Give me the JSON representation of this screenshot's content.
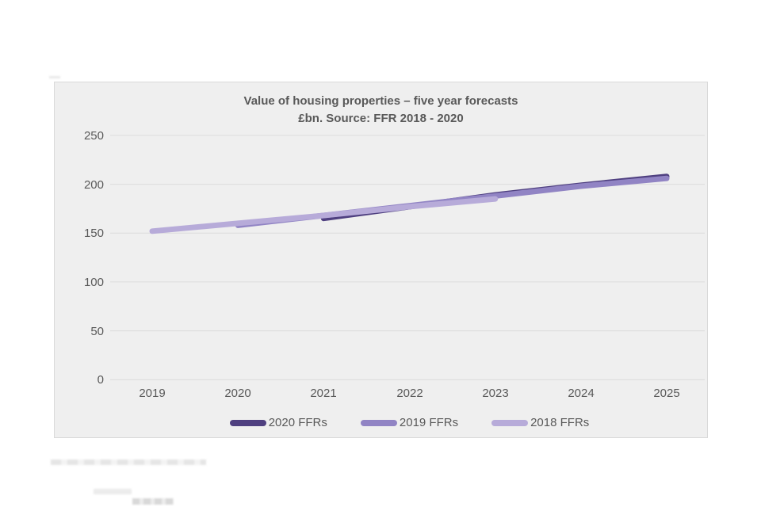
{
  "chart_title": {
    "line1": "Value of housing properties – five year forecasts",
    "line2": "£bn. Source: FFR 2018 - 2020"
  },
  "colors": {
    "frame_background": "#efefef",
    "frame_border": "#d9d9d9",
    "gridline": "#dcdcdc",
    "text": "#595959",
    "series_2020": "#4f4080",
    "series_2019": "#9184c4",
    "series_2018": "#b7abd9"
  },
  "chart_data": {
    "type": "line",
    "title": "Value of housing properties – five year forecasts",
    "subtitle": "£bn. Source: FFR 2018 - 2020",
    "xlabel": "",
    "ylabel": "",
    "x_ticks": [
      2019,
      2020,
      2021,
      2022,
      2023,
      2024,
      2025
    ],
    "y_ticks": [
      250,
      200,
      150,
      100,
      50,
      0
    ],
    "ylim": [
      0,
      250
    ],
    "grid": "horizontal",
    "legend_position": "bottom",
    "line_style": "thick, rounded caps",
    "series": [
      {
        "name": "2020 FFRs",
        "color": "#4f4080",
        "x": [
          2021,
          2022,
          2023,
          2024,
          2025
        ],
        "values": [
          165,
          177,
          189,
          199,
          208
        ]
      },
      {
        "name": "2019 FFRs",
        "color": "#9184c4",
        "x": [
          2020,
          2021,
          2022,
          2023,
          2024,
          2025
        ],
        "values": [
          158,
          168,
          178,
          188,
          198,
          206
        ]
      },
      {
        "name": "2018 FFRs",
        "color": "#b7abd9",
        "x": [
          2019,
          2020,
          2021,
          2022,
          2023
        ],
        "values": [
          152,
          160,
          168,
          177,
          185
        ]
      }
    ]
  }
}
